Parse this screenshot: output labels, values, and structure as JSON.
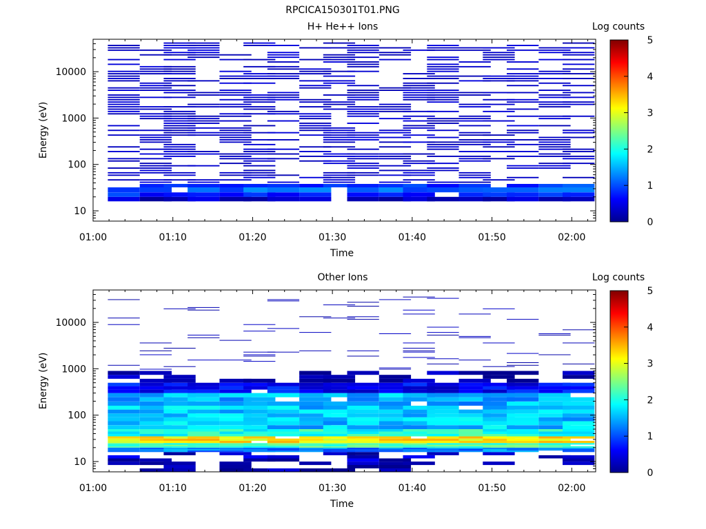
{
  "figure": {
    "title": "RPCICA150301T01.PNG"
  },
  "chart_data": [
    {
      "type": "heatmap",
      "title": "H+ He++ Ions",
      "xlabel": "Time",
      "ylabel": "Energy (eV)",
      "x_scale": "time",
      "y_scale": "log",
      "xlim": [
        "01:00",
        "02:03"
      ],
      "ylim": [
        6,
        50000
      ],
      "x_ticks": [
        "01:00",
        "01:10",
        "01:20",
        "01:30",
        "01:40",
        "01:50",
        "02:00"
      ],
      "y_ticks": [
        "10",
        "100",
        "1000",
        "10000"
      ],
      "colorbar": {
        "label": "Log counts",
        "range": [
          0,
          5
        ],
        "ticks": [
          "0",
          "1",
          "2",
          "3",
          "4",
          "5"
        ]
      },
      "time_bins": [
        "01:02",
        "01:06",
        "01:09",
        "01:12",
        "01:16",
        "01:19",
        "01:22",
        "01:26",
        "01:29",
        "01:32",
        "01:36",
        "01:39",
        "01:42",
        "01:46",
        "01:49",
        "01:52",
        "01:56",
        "01:59"
      ],
      "low_energy_band": [
        {
          "energy_min": 16,
          "energy_max": 20,
          "log_counts": 0.3
        },
        {
          "energy_min": 20,
          "energy_max": 25,
          "log_counts": 0.8
        },
        {
          "energy_min": 25,
          "energy_max": 32,
          "log_counts": 1.1
        },
        {
          "energy_min": 32,
          "energy_max": 38,
          "log_counts": 0.9
        }
      ],
      "sparse_counts": {
        "energy_range": [
          40,
          45000
        ],
        "log_counts": 0.2
      }
    },
    {
      "type": "heatmap",
      "title": "Other Ions",
      "xlabel": "Time",
      "ylabel": "Energy (eV)",
      "x_scale": "time",
      "y_scale": "log",
      "xlim": [
        "01:00",
        "02:03"
      ],
      "ylim": [
        6,
        50000
      ],
      "x_ticks": [
        "01:00",
        "01:10",
        "01:20",
        "01:30",
        "01:40",
        "01:50",
        "02:00"
      ],
      "y_ticks": [
        "10",
        "100",
        "1000",
        "10000"
      ],
      "colorbar": {
        "label": "Log counts",
        "range": [
          0,
          5
        ],
        "ticks": [
          "0",
          "1",
          "2",
          "3",
          "4",
          "5"
        ]
      },
      "time_bins": [
        "01:02",
        "01:06",
        "01:09",
        "01:12",
        "01:16",
        "01:19",
        "01:22",
        "01:26",
        "01:29",
        "01:32",
        "01:36",
        "01:39",
        "01:42",
        "01:46",
        "01:49",
        "01:52",
        "01:56",
        "01:59"
      ],
      "energy_profile": [
        {
          "energy_min": 6,
          "energy_max": 10,
          "log_counts": 0.1
        },
        {
          "energy_min": 10,
          "energy_max": 16,
          "log_counts": 0.3
        },
        {
          "energy_min": 16,
          "energy_max": 20,
          "log_counts": 1.2
        },
        {
          "energy_min": 20,
          "energy_max": 25,
          "log_counts": 2.2
        },
        {
          "energy_min": 25,
          "energy_max": 35,
          "log_counts": 3.2
        },
        {
          "energy_min": 35,
          "energy_max": 50,
          "log_counts": 2.0
        },
        {
          "energy_min": 50,
          "energy_max": 90,
          "log_counts": 1.6
        },
        {
          "energy_min": 90,
          "energy_max": 160,
          "log_counts": 1.6
        },
        {
          "energy_min": 160,
          "energy_max": 300,
          "log_counts": 1.5
        },
        {
          "energy_min": 300,
          "energy_max": 500,
          "log_counts": 0.6
        },
        {
          "energy_min": 500,
          "energy_max": 900,
          "log_counts": 0.1
        }
      ],
      "sparse_counts": {
        "energy_range": [
          900,
          45000
        ],
        "log_counts": 0.1
      }
    }
  ]
}
